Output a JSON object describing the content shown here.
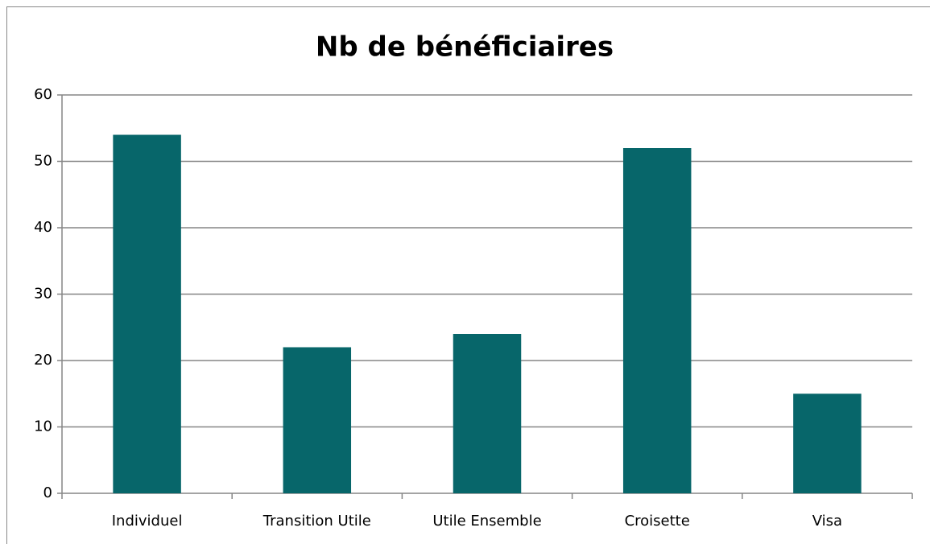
{
  "chart_data": {
    "type": "bar",
    "title": "Nb de bénéficiaires",
    "categories": [
      "Individuel",
      "Transition Utile",
      "Utile Ensemble",
      "Croisette",
      "Visa"
    ],
    "values": [
      54,
      22,
      24,
      52,
      15
    ],
    "color": "#07666a",
    "ylim": [
      0,
      60
    ],
    "yticks": [
      0,
      10,
      20,
      30,
      40,
      50,
      60
    ],
    "grid": true
  }
}
